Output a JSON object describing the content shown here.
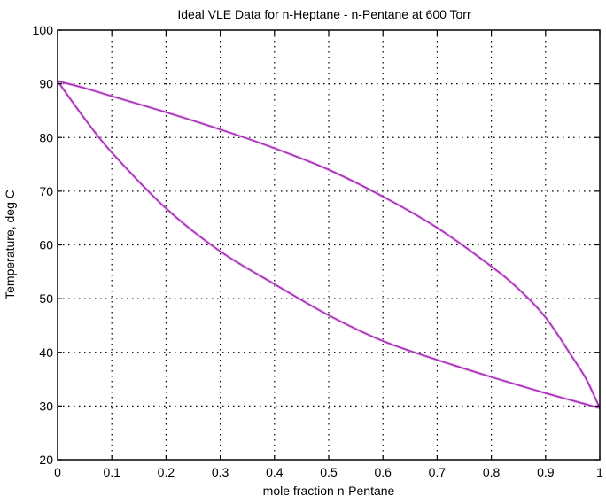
{
  "chart_data": {
    "type": "line",
    "title": "Ideal VLE Data for n-Heptane - n-Pentane at 600 Torr",
    "xlabel": "mole fraction n-Pentane",
    "ylabel": "Temperature, deg C",
    "xlim": [
      0,
      1
    ],
    "ylim": [
      20,
      100
    ],
    "xticks": [
      "0",
      "0.1",
      "0.2",
      "0.3",
      "0.4",
      "0.5",
      "0.6",
      "0.7",
      "0.8",
      "0.9",
      "1"
    ],
    "yticks": [
      "20",
      "30",
      "40",
      "50",
      "60",
      "70",
      "80",
      "90",
      "100"
    ],
    "grid": true,
    "line_color": "#a030b0",
    "series": [
      {
        "x": [
          0,
          0.05,
          0.1,
          0.2,
          0.3,
          0.4,
          0.5,
          0.6,
          0.7,
          0.8,
          0.9,
          0.95,
          1.0
        ],
        "y": [
          90.5,
          83.5,
          77.2,
          66.8,
          58.8,
          52.7,
          46.9,
          42.1,
          38.6,
          35.4,
          32.4,
          31.0,
          29.6
        ]
      },
      {
        "x": [
          0,
          0.05,
          0.1,
          0.2,
          0.3,
          0.4,
          0.5,
          0.6,
          0.7,
          0.8,
          0.85,
          0.9,
          0.95,
          0.975,
          1.0
        ],
        "y": [
          90.5,
          89.2,
          87.7,
          84.7,
          81.5,
          78.0,
          74.0,
          69.0,
          63.2,
          56.0,
          51.8,
          46.5,
          39.0,
          35.0,
          29.6
        ]
      }
    ]
  }
}
